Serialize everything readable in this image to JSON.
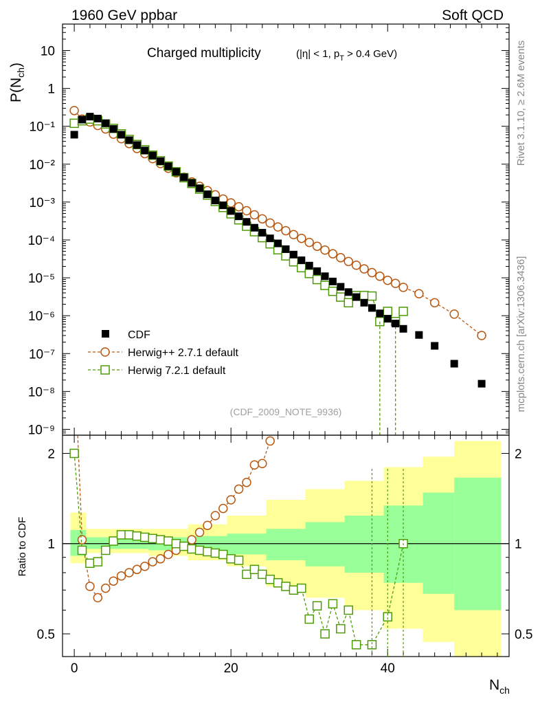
{
  "header": {
    "left": "1960 GeV ppbar",
    "right": "Soft QCD"
  },
  "side_labels": {
    "rivet": "Rivet 3.1.10, ≥ 2.6M events",
    "mcplots": "mcplots.cern.ch [arXiv:1306.3436]"
  },
  "chart_data": {
    "type": "scatter",
    "title_main": "Charged multiplicity",
    "title_cuts": "(|η| < 1, p_T > 0.4 GeV)",
    "watermark": "(CDF_2009_NOTE_9936)",
    "xlabel": "N_ch",
    "ylabel": "P(N_ch)",
    "ratio_ylabel": "Ratio to CDF",
    "xlim": [
      -1.5,
      55.5
    ],
    "ylim": [
      7e-10,
      50
    ],
    "yscale": "log",
    "ratio_ylim": [
      0.42,
      2.3
    ],
    "ratio_yscale": "log",
    "x_ticks": [
      "0",
      "20",
      "40"
    ],
    "y_ticks": [
      "10",
      "1",
      "10⁻¹",
      "10⁻²",
      "10⁻³",
      "10⁻⁴",
      "10⁻⁵",
      "10⁻⁶",
      "10⁻⁷",
      "10⁻⁸",
      "10⁻⁹"
    ],
    "ratio_ticks": [
      "0.5",
      "1",
      "2"
    ],
    "legend": [
      "CDF",
      "Herwig++ 2.7.1 default",
      "Herwig 7.2.1 default"
    ],
    "colors": {
      "cdf": "#000000",
      "herwigpp": "#b8570f",
      "herwig7": "#4e9a06",
      "band_outer": "#ffff99",
      "band_inner": "#99ff99"
    },
    "series": [
      {
        "name": "CDF",
        "points": [
          [
            0,
            0.06
          ],
          [
            1,
            0.15
          ],
          [
            2,
            0.18
          ],
          [
            3,
            0.16
          ],
          [
            4,
            0.12
          ],
          [
            5,
            0.085
          ],
          [
            6,
            0.06
          ],
          [
            7,
            0.043
          ],
          [
            8,
            0.032
          ],
          [
            9,
            0.023
          ],
          [
            10,
            0.017
          ],
          [
            11,
            0.012
          ],
          [
            12,
            0.0088
          ],
          [
            13,
            0.0063
          ],
          [
            14,
            0.0045
          ],
          [
            15,
            0.0032
          ],
          [
            16,
            0.0023
          ],
          [
            17,
            0.0016
          ],
          [
            18,
            0.0011
          ],
          [
            19,
            0.00082
          ],
          [
            20,
            0.00058
          ],
          [
            21,
            0.00042
          ],
          [
            22,
            0.0003
          ],
          [
            23,
            0.00021
          ],
          [
            24,
            0.000155
          ],
          [
            25,
            0.00011
          ],
          [
            26,
            8.1e-05
          ],
          [
            27,
            5.7e-05
          ],
          [
            28,
            4.1e-05
          ],
          [
            29,
            2.9e-05
          ],
          [
            30,
            2.1e-05
          ],
          [
            31,
            1.5e-05
          ],
          [
            32,
            1.1e-05
          ],
          [
            33,
            8e-06
          ],
          [
            34,
            5.8e-06
          ],
          [
            35,
            4.2e-06
          ],
          [
            36,
            3.1e-06
          ],
          [
            37,
            2.2e-06
          ],
          [
            38,
            1.6e-06
          ],
          [
            39,
            1.15e-06
          ],
          [
            40,
            8.3e-07
          ],
          [
            41,
            6.2e-07
          ],
          [
            42,
            4.5e-07
          ],
          [
            44,
            3.1e-07
          ],
          [
            46,
            1.6e-07
          ],
          [
            48.5,
            5.4e-08
          ],
          [
            52,
            1.6e-08
          ]
        ]
      },
      {
        "name": "Herwig++ 2.7.1 default",
        "points": [
          [
            0,
            0.26
          ],
          [
            1,
            0.155
          ],
          [
            2,
            0.13
          ],
          [
            3,
            0.105
          ],
          [
            4,
            0.085
          ],
          [
            5,
            0.062
          ],
          [
            6,
            0.047
          ],
          [
            7,
            0.035
          ],
          [
            8,
            0.026
          ],
          [
            9,
            0.019
          ],
          [
            10,
            0.014
          ],
          [
            11,
            0.0104
          ],
          [
            12,
            0.0078
          ],
          [
            13,
            0.0059
          ],
          [
            14,
            0.0045
          ],
          [
            15,
            0.0034
          ],
          [
            16,
            0.0026
          ],
          [
            17,
            0.002
          ],
          [
            18,
            0.00155
          ],
          [
            19,
            0.0012
          ],
          [
            20,
            0.00095
          ],
          [
            21,
            0.00075
          ],
          [
            22,
            0.00059
          ],
          [
            23,
            0.00046
          ],
          [
            24,
            0.00036
          ],
          [
            25,
            0.00028
          ],
          [
            26,
            0.00022
          ],
          [
            27,
            0.000175
          ],
          [
            28,
            0.000138
          ],
          [
            29,
            0.00011
          ],
          [
            30,
            8.6e-05
          ],
          [
            31,
            6.8e-05
          ],
          [
            32,
            5.4e-05
          ],
          [
            33,
            4.3e-05
          ],
          [
            34,
            3.4e-05
          ],
          [
            35,
            2.7e-05
          ],
          [
            36,
            2.15e-05
          ],
          [
            37,
            1.72e-05
          ],
          [
            38,
            1.37e-05
          ],
          [
            39,
            1.1e-05
          ],
          [
            40,
            8.6e-06
          ],
          [
            41,
            7.1e-06
          ],
          [
            42,
            5.6e-06
          ],
          [
            44,
            3.8e-06
          ],
          [
            46,
            2.2e-06
          ],
          [
            48.5,
            1.1e-06
          ],
          [
            52,
            3e-07
          ]
        ]
      },
      {
        "name": "Herwig 7.2.1 default",
        "points": [
          [
            0,
            0.12
          ],
          [
            1,
            0.14
          ],
          [
            2,
            0.155
          ],
          [
            3,
            0.14
          ],
          [
            4,
            0.115
          ],
          [
            5,
            0.088
          ],
          [
            6,
            0.063
          ],
          [
            7,
            0.045
          ],
          [
            8,
            0.033
          ],
          [
            9,
            0.024
          ],
          [
            10,
            0.0173
          ],
          [
            11,
            0.0123
          ],
          [
            12,
            0.0089
          ],
          [
            13,
            0.0063
          ],
          [
            14,
            0.0044
          ],
          [
            15,
            0.0031
          ],
          [
            16,
            0.0022
          ],
          [
            17,
            0.00153
          ],
          [
            18,
            0.00104
          ],
          [
            19,
            0.00072
          ],
          [
            20,
            0.00049
          ],
          [
            21,
            0.00034
          ],
          [
            22,
            0.00023
          ],
          [
            23,
            0.000165
          ],
          [
            24,
            0.000115
          ],
          [
            25,
            7.9e-05
          ],
          [
            26,
            5.5e-05
          ],
          [
            27,
            3.8e-05
          ],
          [
            28,
            2.65e-05
          ],
          [
            29,
            1.85e-05
          ],
          [
            30,
            1.3e-05
          ],
          [
            31,
            9e-06
          ],
          [
            32,
            6.3e-06
          ],
          [
            33,
            4.4e-06
          ],
          [
            34,
            3.1e-06
          ],
          [
            35,
            2.2e-06
          ],
          [
            36,
            3.4e-06
          ],
          [
            37,
            3.4e-06
          ],
          [
            38,
            3.3e-06
          ],
          [
            39,
            7e-07
          ],
          [
            40,
            1.3e-06
          ],
          [
            41,
            7e-07
          ],
          [
            42,
            1.3e-06
          ]
        ]
      }
    ],
    "ratio_series": [
      {
        "name": "Herwig++ 2.7.1 default",
        "points": [
          [
            0,
            4.3
          ],
          [
            1,
            1.03
          ],
          [
            2,
            0.72
          ],
          [
            3,
            0.66
          ],
          [
            4,
            0.71
          ],
          [
            5,
            0.75
          ],
          [
            6,
            0.78
          ],
          [
            7,
            0.8
          ],
          [
            8,
            0.82
          ],
          [
            9,
            0.84
          ],
          [
            10,
            0.87
          ],
          [
            11,
            0.89
          ],
          [
            12,
            0.92
          ],
          [
            13,
            0.95
          ],
          [
            14,
            0.98
          ],
          [
            15,
            1.03
          ],
          [
            16,
            1.09
          ],
          [
            17,
            1.15
          ],
          [
            18,
            1.24
          ],
          [
            19,
            1.31
          ],
          [
            20,
            1.4
          ],
          [
            21,
            1.52
          ],
          [
            22,
            1.6
          ],
          [
            23,
            1.83
          ],
          [
            24,
            1.85
          ],
          [
            25,
            2.2
          ]
        ]
      },
      {
        "name": "Herwig 7.2.1 default",
        "points": [
          [
            0,
            2.0
          ],
          [
            1,
            0.95
          ],
          [
            2,
            0.86
          ],
          [
            3,
            0.87
          ],
          [
            4,
            0.95
          ],
          [
            5,
            1.02
          ],
          [
            6,
            1.07
          ],
          [
            7,
            1.07
          ],
          [
            8,
            1.06
          ],
          [
            9,
            1.05
          ],
          [
            10,
            1.04
          ],
          [
            11,
            1.03
          ],
          [
            12,
            1.02
          ],
          [
            13,
            1.0
          ],
          [
            14,
            0.98
          ],
          [
            15,
            0.96
          ],
          [
            16,
            0.95
          ],
          [
            17,
            0.94
          ],
          [
            18,
            0.93
          ],
          [
            19,
            0.92
          ],
          [
            20,
            0.89
          ],
          [
            21,
            0.88
          ],
          [
            22,
            0.79
          ],
          [
            23,
            0.82
          ],
          [
            24,
            0.79
          ],
          [
            25,
            0.76
          ],
          [
            26,
            0.74
          ],
          [
            27,
            0.72
          ],
          [
            28,
            0.7
          ],
          [
            29,
            0.71
          ],
          [
            30,
            0.56
          ],
          [
            31,
            0.62
          ],
          [
            32,
            0.5
          ],
          [
            33,
            0.63
          ],
          [
            34,
            0.52
          ],
          [
            35,
            0.6
          ],
          [
            36,
            0.46
          ],
          [
            38,
            0.46
          ],
          [
            40,
            0.57
          ],
          [
            42,
            1.0
          ]
        ]
      }
    ],
    "ratio_band": [
      [
        -0.5,
        1.5,
        0.86,
        1.27,
        0.91,
        1.11
      ],
      [
        1.5,
        9.5,
        0.93,
        1.12,
        0.96,
        1.05
      ],
      [
        9.5,
        14.5,
        0.91,
        1.12,
        0.95,
        1.05
      ],
      [
        14.5,
        19.5,
        0.88,
        1.16,
        0.94,
        1.06
      ],
      [
        19.5,
        24.5,
        0.84,
        1.24,
        0.92,
        1.08
      ],
      [
        24.5,
        29.5,
        0.72,
        1.4,
        0.88,
        1.12
      ],
      [
        29.5,
        34.5,
        0.66,
        1.52,
        0.84,
        1.18
      ],
      [
        34.5,
        39.5,
        0.6,
        1.62,
        0.8,
        1.24
      ],
      [
        39.5,
        44.5,
        0.52,
        1.8,
        0.74,
        1.34
      ],
      [
        44.5,
        48.5,
        0.47,
        1.95,
        0.68,
        1.48
      ],
      [
        48.5,
        54.5,
        0.42,
        2.2,
        0.6,
        1.66
      ]
    ]
  }
}
